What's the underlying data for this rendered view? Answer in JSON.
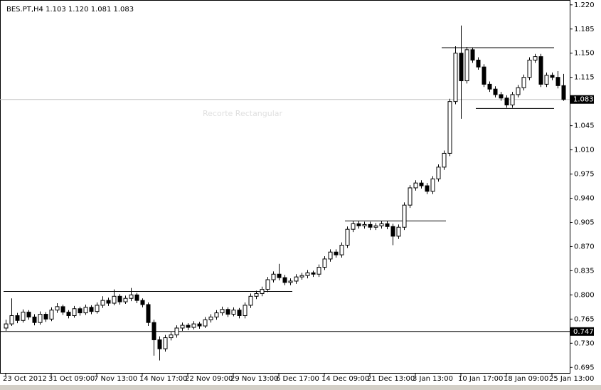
{
  "chart_data": {
    "type": "candlestick",
    "title": "BES.PT,H4  1.103 1.120 1.081 1.083",
    "watermark": "Recorte Rectangular",
    "categories": [
      "23 Oct 2012",
      null,
      null,
      null,
      null,
      null,
      null,
      null,
      "31 Oct 09:00",
      null,
      null,
      null,
      null,
      null,
      null,
      null,
      "7 Nov 13:00",
      null,
      null,
      null,
      null,
      null,
      null,
      null,
      "14 Nov 17:00",
      null,
      null,
      null,
      null,
      null,
      null,
      null,
      "22 Nov 09:00",
      null,
      null,
      null,
      null,
      null,
      null,
      null,
      "29 Nov 13:00",
      null,
      null,
      null,
      null,
      null,
      null,
      null,
      "6 Dec 17:00",
      null,
      null,
      null,
      null,
      null,
      null,
      null,
      "14 Dec 09:00",
      null,
      null,
      null,
      null,
      null,
      null,
      null,
      "21 Dec 13:00",
      null,
      null,
      null,
      null,
      null,
      null,
      null,
      "3 Jan 13:00",
      null,
      null,
      null,
      null,
      null,
      null,
      null,
      "10 Jan 17:00",
      null,
      null,
      null,
      null,
      null,
      null,
      null,
      "18 Jan 09:00",
      null,
      null,
      null,
      null,
      null,
      null,
      null,
      "25 Jan 13:00",
      null,
      null
    ],
    "ohlc": [
      [
        0.752,
        0.764,
        0.748,
        0.758
      ],
      [
        0.758,
        0.795,
        0.755,
        0.77
      ],
      [
        0.77,
        0.774,
        0.759,
        0.763
      ],
      [
        0.763,
        0.779,
        0.76,
        0.775
      ],
      [
        0.775,
        0.778,
        0.764,
        0.768
      ],
      [
        0.768,
        0.772,
        0.756,
        0.76
      ],
      [
        0.76,
        0.776,
        0.757,
        0.772
      ],
      [
        0.772,
        0.775,
        0.761,
        0.765
      ],
      [
        0.765,
        0.782,
        0.762,
        0.778
      ],
      [
        0.778,
        0.788,
        0.774,
        0.783
      ],
      [
        0.783,
        0.786,
        0.771,
        0.775
      ],
      [
        0.775,
        0.778,
        0.766,
        0.77
      ],
      [
        0.77,
        0.784,
        0.767,
        0.78
      ],
      [
        0.78,
        0.783,
        0.77,
        0.774
      ],
      [
        0.774,
        0.786,
        0.771,
        0.782
      ],
      [
        0.782,
        0.785,
        0.772,
        0.776
      ],
      [
        0.776,
        0.789,
        0.773,
        0.785
      ],
      [
        0.785,
        0.798,
        0.781,
        0.792
      ],
      [
        0.792,
        0.796,
        0.784,
        0.788
      ],
      [
        0.788,
        0.808,
        0.785,
        0.798
      ],
      [
        0.798,
        0.801,
        0.786,
        0.79
      ],
      [
        0.79,
        0.799,
        0.787,
        0.795
      ],
      [
        0.795,
        0.81,
        0.791,
        0.8
      ],
      [
        0.8,
        0.803,
        0.788,
        0.792
      ],
      [
        0.792,
        0.795,
        0.782,
        0.786
      ],
      [
        0.786,
        0.789,
        0.755,
        0.76
      ],
      [
        0.76,
        0.764,
        0.712,
        0.735
      ],
      [
        0.735,
        0.74,
        0.705,
        0.722
      ],
      [
        0.722,
        0.742,
        0.718,
        0.738
      ],
      [
        0.738,
        0.746,
        0.734,
        0.742
      ],
      [
        0.742,
        0.756,
        0.738,
        0.752
      ],
      [
        0.752,
        0.76,
        0.748,
        0.756
      ],
      [
        0.756,
        0.759,
        0.749,
        0.753
      ],
      [
        0.753,
        0.762,
        0.75,
        0.758
      ],
      [
        0.758,
        0.761,
        0.751,
        0.755
      ],
      [
        0.755,
        0.768,
        0.752,
        0.764
      ],
      [
        0.764,
        0.772,
        0.76,
        0.768
      ],
      [
        0.768,
        0.778,
        0.764,
        0.774
      ],
      [
        0.774,
        0.783,
        0.77,
        0.779
      ],
      [
        0.779,
        0.782,
        0.768,
        0.772
      ],
      [
        0.772,
        0.782,
        0.769,
        0.778
      ],
      [
        0.778,
        0.781,
        0.766,
        0.77
      ],
      [
        0.77,
        0.789,
        0.766,
        0.785
      ],
      [
        0.785,
        0.802,
        0.781,
        0.798
      ],
      [
        0.798,
        0.806,
        0.794,
        0.802
      ],
      [
        0.802,
        0.812,
        0.798,
        0.808
      ],
      [
        0.808,
        0.826,
        0.804,
        0.822
      ],
      [
        0.822,
        0.834,
        0.818,
        0.83
      ],
      [
        0.83,
        0.845,
        0.821,
        0.825
      ],
      [
        0.825,
        0.829,
        0.814,
        0.818
      ],
      [
        0.818,
        0.824,
        0.814,
        0.82
      ],
      [
        0.82,
        0.83,
        0.816,
        0.826
      ],
      [
        0.826,
        0.832,
        0.822,
        0.828
      ],
      [
        0.828,
        0.836,
        0.824,
        0.832
      ],
      [
        0.832,
        0.835,
        0.826,
        0.83
      ],
      [
        0.83,
        0.844,
        0.826,
        0.84
      ],
      [
        0.84,
        0.856,
        0.836,
        0.852
      ],
      [
        0.852,
        0.866,
        0.848,
        0.862
      ],
      [
        0.862,
        0.866,
        0.854,
        0.858
      ],
      [
        0.858,
        0.876,
        0.854,
        0.872
      ],
      [
        0.872,
        0.899,
        0.868,
        0.895
      ],
      [
        0.895,
        0.907,
        0.891,
        0.903
      ],
      [
        0.903,
        0.907,
        0.896,
        0.9
      ],
      [
        0.9,
        0.906,
        0.896,
        0.902
      ],
      [
        0.902,
        0.906,
        0.894,
        0.898
      ],
      [
        0.898,
        0.904,
        0.894,
        0.9
      ],
      [
        0.9,
        0.907,
        0.896,
        0.903
      ],
      [
        0.903,
        0.907,
        0.895,
        0.899
      ],
      [
        0.899,
        0.903,
        0.872,
        0.885
      ],
      [
        0.885,
        0.902,
        0.881,
        0.898
      ],
      [
        0.898,
        0.934,
        0.894,
        0.93
      ],
      [
        0.93,
        0.959,
        0.926,
        0.955
      ],
      [
        0.955,
        0.966,
        0.951,
        0.962
      ],
      [
        0.962,
        0.966,
        0.954,
        0.958
      ],
      [
        0.958,
        0.962,
        0.946,
        0.95
      ],
      [
        0.95,
        0.972,
        0.946,
        0.968
      ],
      [
        0.968,
        0.989,
        0.964,
        0.985
      ],
      [
        0.985,
        1.009,
        0.981,
        1.005
      ],
      [
        1.005,
        1.084,
        1.001,
        1.08
      ],
      [
        1.08,
        1.16,
        1.076,
        1.15
      ],
      [
        1.15,
        1.19,
        1.055,
        1.11
      ],
      [
        1.11,
        1.159,
        1.106,
        1.155
      ],
      [
        1.155,
        1.158,
        1.136,
        1.14
      ],
      [
        1.14,
        1.144,
        1.126,
        1.13
      ],
      [
        1.13,
        1.134,
        1.101,
        1.105
      ],
      [
        1.105,
        1.109,
        1.094,
        1.098
      ],
      [
        1.098,
        1.102,
        1.086,
        1.09
      ],
      [
        1.09,
        1.094,
        1.081,
        1.085
      ],
      [
        1.085,
        1.089,
        1.071,
        1.075
      ],
      [
        1.075,
        1.094,
        1.071,
        1.09
      ],
      [
        1.09,
        1.104,
        1.086,
        1.1
      ],
      [
        1.1,
        1.119,
        1.096,
        1.115
      ],
      [
        1.115,
        1.144,
        1.111,
        1.14
      ],
      [
        1.14,
        1.149,
        1.136,
        1.145
      ],
      [
        1.145,
        1.149,
        1.101,
        1.105
      ],
      [
        1.105,
        1.122,
        1.101,
        1.118
      ],
      [
        1.118,
        1.122,
        1.111,
        1.115
      ],
      [
        1.115,
        1.124,
        1.099,
        1.103
      ],
      [
        1.103,
        1.12,
        1.081,
        1.083
      ]
    ],
    "ylim": [
      0.686,
      1.227
    ],
    "yticks": [
      {
        "value": 0.695,
        "label": "0.695"
      },
      {
        "value": 0.73,
        "label": "0.730"
      },
      {
        "value": 0.765,
        "label": "0.765"
      },
      {
        "value": 0.8,
        "label": "0.800"
      },
      {
        "value": 0.835,
        "label": "0.835"
      },
      {
        "value": 0.87,
        "label": "0.870"
      },
      {
        "value": 0.905,
        "label": "0.905"
      },
      {
        "value": 0.94,
        "label": "0.940"
      },
      {
        "value": 0.975,
        "label": "0.975"
      },
      {
        "value": 1.01,
        "label": "1.010"
      },
      {
        "value": 1.045,
        "label": "1.045"
      },
      {
        "value": 1.115,
        "label": "1.115"
      },
      {
        "value": 1.15,
        "label": "1.150"
      },
      {
        "value": 1.185,
        "label": "1.185"
      },
      {
        "value": 1.22,
        "label": "1.220"
      }
    ],
    "price_lines": [
      {
        "value": 1.083,
        "label": "1.083",
        "color": "#c0c0c0"
      },
      {
        "value": 0.747,
        "label": "0.747",
        "color": "#000000"
      }
    ],
    "trend_lines": [
      {
        "value": 0.805,
        "from": 0,
        "to": 50
      },
      {
        "value": 0.907,
        "from": 60,
        "to": 77
      },
      {
        "value": 1.158,
        "from": 77,
        "to": 96
      },
      {
        "value": 1.07,
        "from": 83,
        "to": 96
      }
    ],
    "up_color": "#ffffff",
    "down_color": "#000000"
  }
}
